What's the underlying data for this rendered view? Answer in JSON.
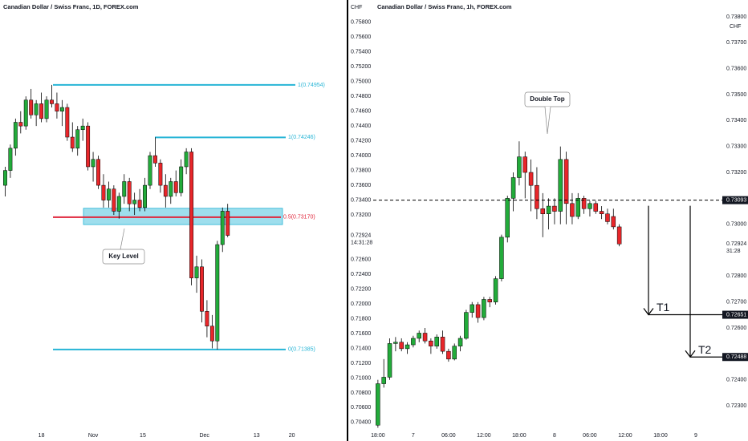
{
  "chart_data": [
    {
      "type": "candlestick",
      "title": "Canadian Dollar / Swiss Franc, 1D, FOREX.com",
      "currency": "CHF",
      "up_color": "#22ab3a",
      "down_color": "#e8262a",
      "grid": false,
      "open": [
        0.736,
        0.738,
        0.741,
        0.7445,
        0.744,
        0.7475,
        0.7455,
        0.747,
        0.745,
        0.7475,
        0.747,
        0.746,
        0.7465,
        0.7425,
        0.741,
        0.7435,
        0.744,
        0.7385,
        0.7395,
        0.736,
        0.734,
        0.7355,
        0.7325,
        0.7345,
        0.7365,
        0.7335,
        0.734,
        0.733,
        0.736,
        0.74,
        0.739,
        0.736,
        0.7345,
        0.7365,
        0.735,
        0.7385,
        0.7405,
        0.7235,
        0.725,
        0.719,
        0.717,
        0.715,
        0.728,
        0.7325
      ],
      "high": [
        0.7385,
        0.7415,
        0.745,
        0.746,
        0.748,
        0.749,
        0.7475,
        0.7485,
        0.748,
        0.74954,
        0.7485,
        0.7475,
        0.747,
        0.7445,
        0.744,
        0.745,
        0.7445,
        0.7405,
        0.74,
        0.7375,
        0.7365,
        0.736,
        0.735,
        0.7375,
        0.737,
        0.735,
        0.7355,
        0.737,
        0.7405,
        0.74246,
        0.7395,
        0.7375,
        0.737,
        0.738,
        0.7395,
        0.741,
        0.741,
        0.7265,
        0.726,
        0.7205,
        0.7185,
        0.7285,
        0.733,
        0.7335
      ],
      "low": [
        0.7345,
        0.737,
        0.74,
        0.743,
        0.7435,
        0.745,
        0.744,
        0.7445,
        0.7445,
        0.7465,
        0.745,
        0.744,
        0.742,
        0.7405,
        0.74,
        0.742,
        0.738,
        0.7365,
        0.7355,
        0.733,
        0.733,
        0.732,
        0.7315,
        0.7335,
        0.7325,
        0.732,
        0.7325,
        0.7325,
        0.7355,
        0.7385,
        0.735,
        0.733,
        0.7335,
        0.7345,
        0.7345,
        0.7375,
        0.7225,
        0.7215,
        0.7175,
        0.7155,
        0.714,
        0.71385,
        0.727,
        0.729
      ],
      "close": [
        0.738,
        0.741,
        0.7445,
        0.744,
        0.7475,
        0.7455,
        0.747,
        0.745,
        0.7475,
        0.747,
        0.746,
        0.7465,
        0.7425,
        0.741,
        0.7435,
        0.744,
        0.7385,
        0.7395,
        0.736,
        0.734,
        0.7355,
        0.7325,
        0.7345,
        0.7365,
        0.7335,
        0.734,
        0.733,
        0.736,
        0.74,
        0.739,
        0.736,
        0.7345,
        0.7365,
        0.735,
        0.7385,
        0.7405,
        0.7235,
        0.725,
        0.719,
        0.717,
        0.715,
        0.728,
        0.7325,
        0.72924
      ],
      "xlim": [
        -1,
        66
      ],
      "xticks": [
        {
          "value": 7,
          "label": "18"
        },
        {
          "value": 17,
          "label": "Nov"
        },
        {
          "value": 26.6,
          "label": "15"
        },
        {
          "value": 38.5,
          "label": "Dec"
        },
        {
          "value": 48.6,
          "label": "13"
        },
        {
          "value": 55.4,
          "label": "20"
        }
      ],
      "ylim": [
        0.7015,
        0.761
      ],
      "yticks": [
        {
          "value": 0.758,
          "label": "0.75800"
        },
        {
          "value": 0.756,
          "label": "0.75600"
        },
        {
          "value": 0.754,
          "label": "0.75400"
        },
        {
          "value": 0.752,
          "label": "0.75200"
        },
        {
          "value": 0.75,
          "label": "0.75000"
        },
        {
          "value": 0.748,
          "label": "0.74800"
        },
        {
          "value": 0.746,
          "label": "0.74600"
        },
        {
          "value": 0.744,
          "label": "0.74400"
        },
        {
          "value": 0.742,
          "label": "0.74200"
        },
        {
          "value": 0.74,
          "label": "0.74000"
        },
        {
          "value": 0.738,
          "label": "0.73800"
        },
        {
          "value": 0.736,
          "label": "0.73600"
        },
        {
          "value": 0.734,
          "label": "0.73400"
        },
        {
          "value": 0.732,
          "label": "0.73200"
        },
        {
          "value": 0.726,
          "label": "0.72600"
        },
        {
          "value": 0.724,
          "label": "0.72400"
        },
        {
          "value": 0.722,
          "label": "0.72200"
        },
        {
          "value": 0.72,
          "label": "0.72000"
        },
        {
          "value": 0.718,
          "label": "0.71800"
        },
        {
          "value": 0.716,
          "label": "0.71600"
        },
        {
          "value": 0.714,
          "label": "0.71400"
        },
        {
          "value": 0.712,
          "label": "0.71200"
        },
        {
          "value": 0.71,
          "label": "0.71000"
        },
        {
          "value": 0.708,
          "label": "0.70800"
        },
        {
          "value": 0.706,
          "label": "0.70600"
        },
        {
          "value": 0.704,
          "label": "0.70400"
        }
      ],
      "last_price": {
        "value": 0.72924,
        "label": "0.72924"
      },
      "countdown": "14:31:28",
      "levels": [
        {
          "label": "1(0.74954)",
          "value": 0.74954,
          "color": "#27b5d6"
        },
        {
          "label": "1(0.74246)",
          "value": 0.74246,
          "color": "#27b5d6"
        },
        {
          "label": "0(0.71385)",
          "value": 0.71385,
          "color": "#27b5d6"
        },
        {
          "label": "0.5(0.73170)",
          "value": 0.7317,
          "color": "#e0263b"
        }
      ],
      "zone": {
        "label": "Key Level",
        "from": 0.7307,
        "to": 0.7329,
        "color": "#27b5d6"
      }
    },
    {
      "type": "candlestick",
      "title": "Canadian Dollar / Swiss Franc, 1h, FOREX.com",
      "currency": "CHF",
      "up_color": "#22ab3a",
      "down_color": "#e8262a",
      "grid": false,
      "open": [
        0.72225,
        0.72385,
        0.7241,
        0.7254,
        0.72545,
        0.7252,
        0.72535,
        0.7256,
        0.7258,
        0.7255,
        0.7253,
        0.72565,
        0.7251,
        0.7248,
        0.7253,
        0.7256,
        0.7266,
        0.7269,
        0.7264,
        0.7271,
        0.727,
        0.7279,
        0.7295,
        0.731,
        0.7318,
        0.7326,
        0.732,
        0.7315,
        0.7306,
        0.7304,
        0.7307,
        0.7305,
        0.7325,
        0.7308,
        0.7303,
        0.731,
        0.7306,
        0.7308,
        0.7305,
        0.7304,
        0.7303,
        0.7299
      ],
      "high": [
        0.724,
        0.7248,
        0.7256,
        0.72565,
        0.7256,
        0.72545,
        0.7257,
        0.7259,
        0.726,
        0.7256,
        0.72575,
        0.7259,
        0.7252,
        0.7254,
        0.7257,
        0.7267,
        0.727,
        0.727,
        0.7272,
        0.7272,
        0.728,
        0.7296,
        0.7311,
        0.732,
        0.7332,
        0.7328,
        0.7325,
        0.7322,
        0.7312,
        0.731,
        0.731,
        0.733,
        0.7328,
        0.7312,
        0.7312,
        0.7311,
        0.7309,
        0.7309,
        0.7307,
        0.7306,
        0.7306,
        0.73
      ],
      "low": [
        0.72215,
        0.7237,
        0.724,
        0.7251,
        0.7251,
        0.725,
        0.72525,
        0.72545,
        0.7254,
        0.725,
        0.7252,
        0.725,
        0.7247,
        0.72475,
        0.7251,
        0.72555,
        0.7264,
        0.7262,
        0.7263,
        0.7268,
        0.7269,
        0.7278,
        0.7293,
        0.7305,
        0.7315,
        0.731,
        0.7305,
        0.7302,
        0.7295,
        0.7298,
        0.73,
        0.73,
        0.73,
        0.73,
        0.7302,
        0.7304,
        0.7303,
        0.7304,
        0.7302,
        0.73,
        0.7298,
        0.72915
      ],
      "close": [
        0.72385,
        0.7241,
        0.7254,
        0.72545,
        0.7252,
        0.72535,
        0.7256,
        0.7258,
        0.7255,
        0.7253,
        0.72565,
        0.7251,
        0.7248,
        0.7253,
        0.7256,
        0.7266,
        0.7269,
        0.7264,
        0.7271,
        0.727,
        0.7279,
        0.7295,
        0.731,
        0.7318,
        0.7326,
        0.732,
        0.7315,
        0.7306,
        0.7304,
        0.7307,
        0.7305,
        0.7325,
        0.7308,
        0.7303,
        0.731,
        0.7306,
        0.7308,
        0.7305,
        0.7304,
        0.7301,
        0.7299,
        0.72924
      ],
      "xlim": [
        -0.8,
        58.5
      ],
      "xticks": [
        {
          "value": 0,
          "label": "18:00"
        },
        {
          "value": 6,
          "label": "7"
        },
        {
          "value": 12,
          "label": "06:00"
        },
        {
          "value": 18,
          "label": "12:00"
        },
        {
          "value": 24,
          "label": "18:00"
        },
        {
          "value": 30,
          "label": "8"
        },
        {
          "value": 36,
          "label": "06:00"
        },
        {
          "value": 42,
          "label": "12:00"
        },
        {
          "value": 48,
          "label": "18:00"
        },
        {
          "value": 54,
          "label": "9"
        }
      ],
      "ylim": [
        0.72164,
        0.73865
      ],
      "yticks": [
        {
          "value": 0.738,
          "label": "0.73800"
        },
        {
          "value": 0.737,
          "label": "0.73700"
        },
        {
          "value": 0.736,
          "label": "0.73600"
        },
        {
          "value": 0.735,
          "label": "0.73500"
        },
        {
          "value": 0.734,
          "label": "0.73400"
        },
        {
          "value": 0.733,
          "label": "0.73300"
        },
        {
          "value": 0.732,
          "label": "0.73200"
        },
        {
          "value": 0.73,
          "label": "0.73000"
        },
        {
          "value": 0.728,
          "label": "0.72800"
        },
        {
          "value": 0.727,
          "label": "0.72700"
        },
        {
          "value": 0.726,
          "label": "0.72600"
        },
        {
          "value": 0.724,
          "label": "0.72400"
        },
        {
          "value": 0.723,
          "label": "0.72300"
        }
      ],
      "last_price": {
        "value": 0.72924,
        "label": "0.72924"
      },
      "countdown": "31:28",
      "price_line": {
        "value": 0.73093,
        "label": "0.73093"
      },
      "annotation": "Double Top",
      "targets": [
        {
          "name": "T1",
          "value": 0.72651,
          "label": "0.72651"
        },
        {
          "name": "T2",
          "value": 0.72488,
          "label": "0.72488"
        }
      ]
    }
  ]
}
